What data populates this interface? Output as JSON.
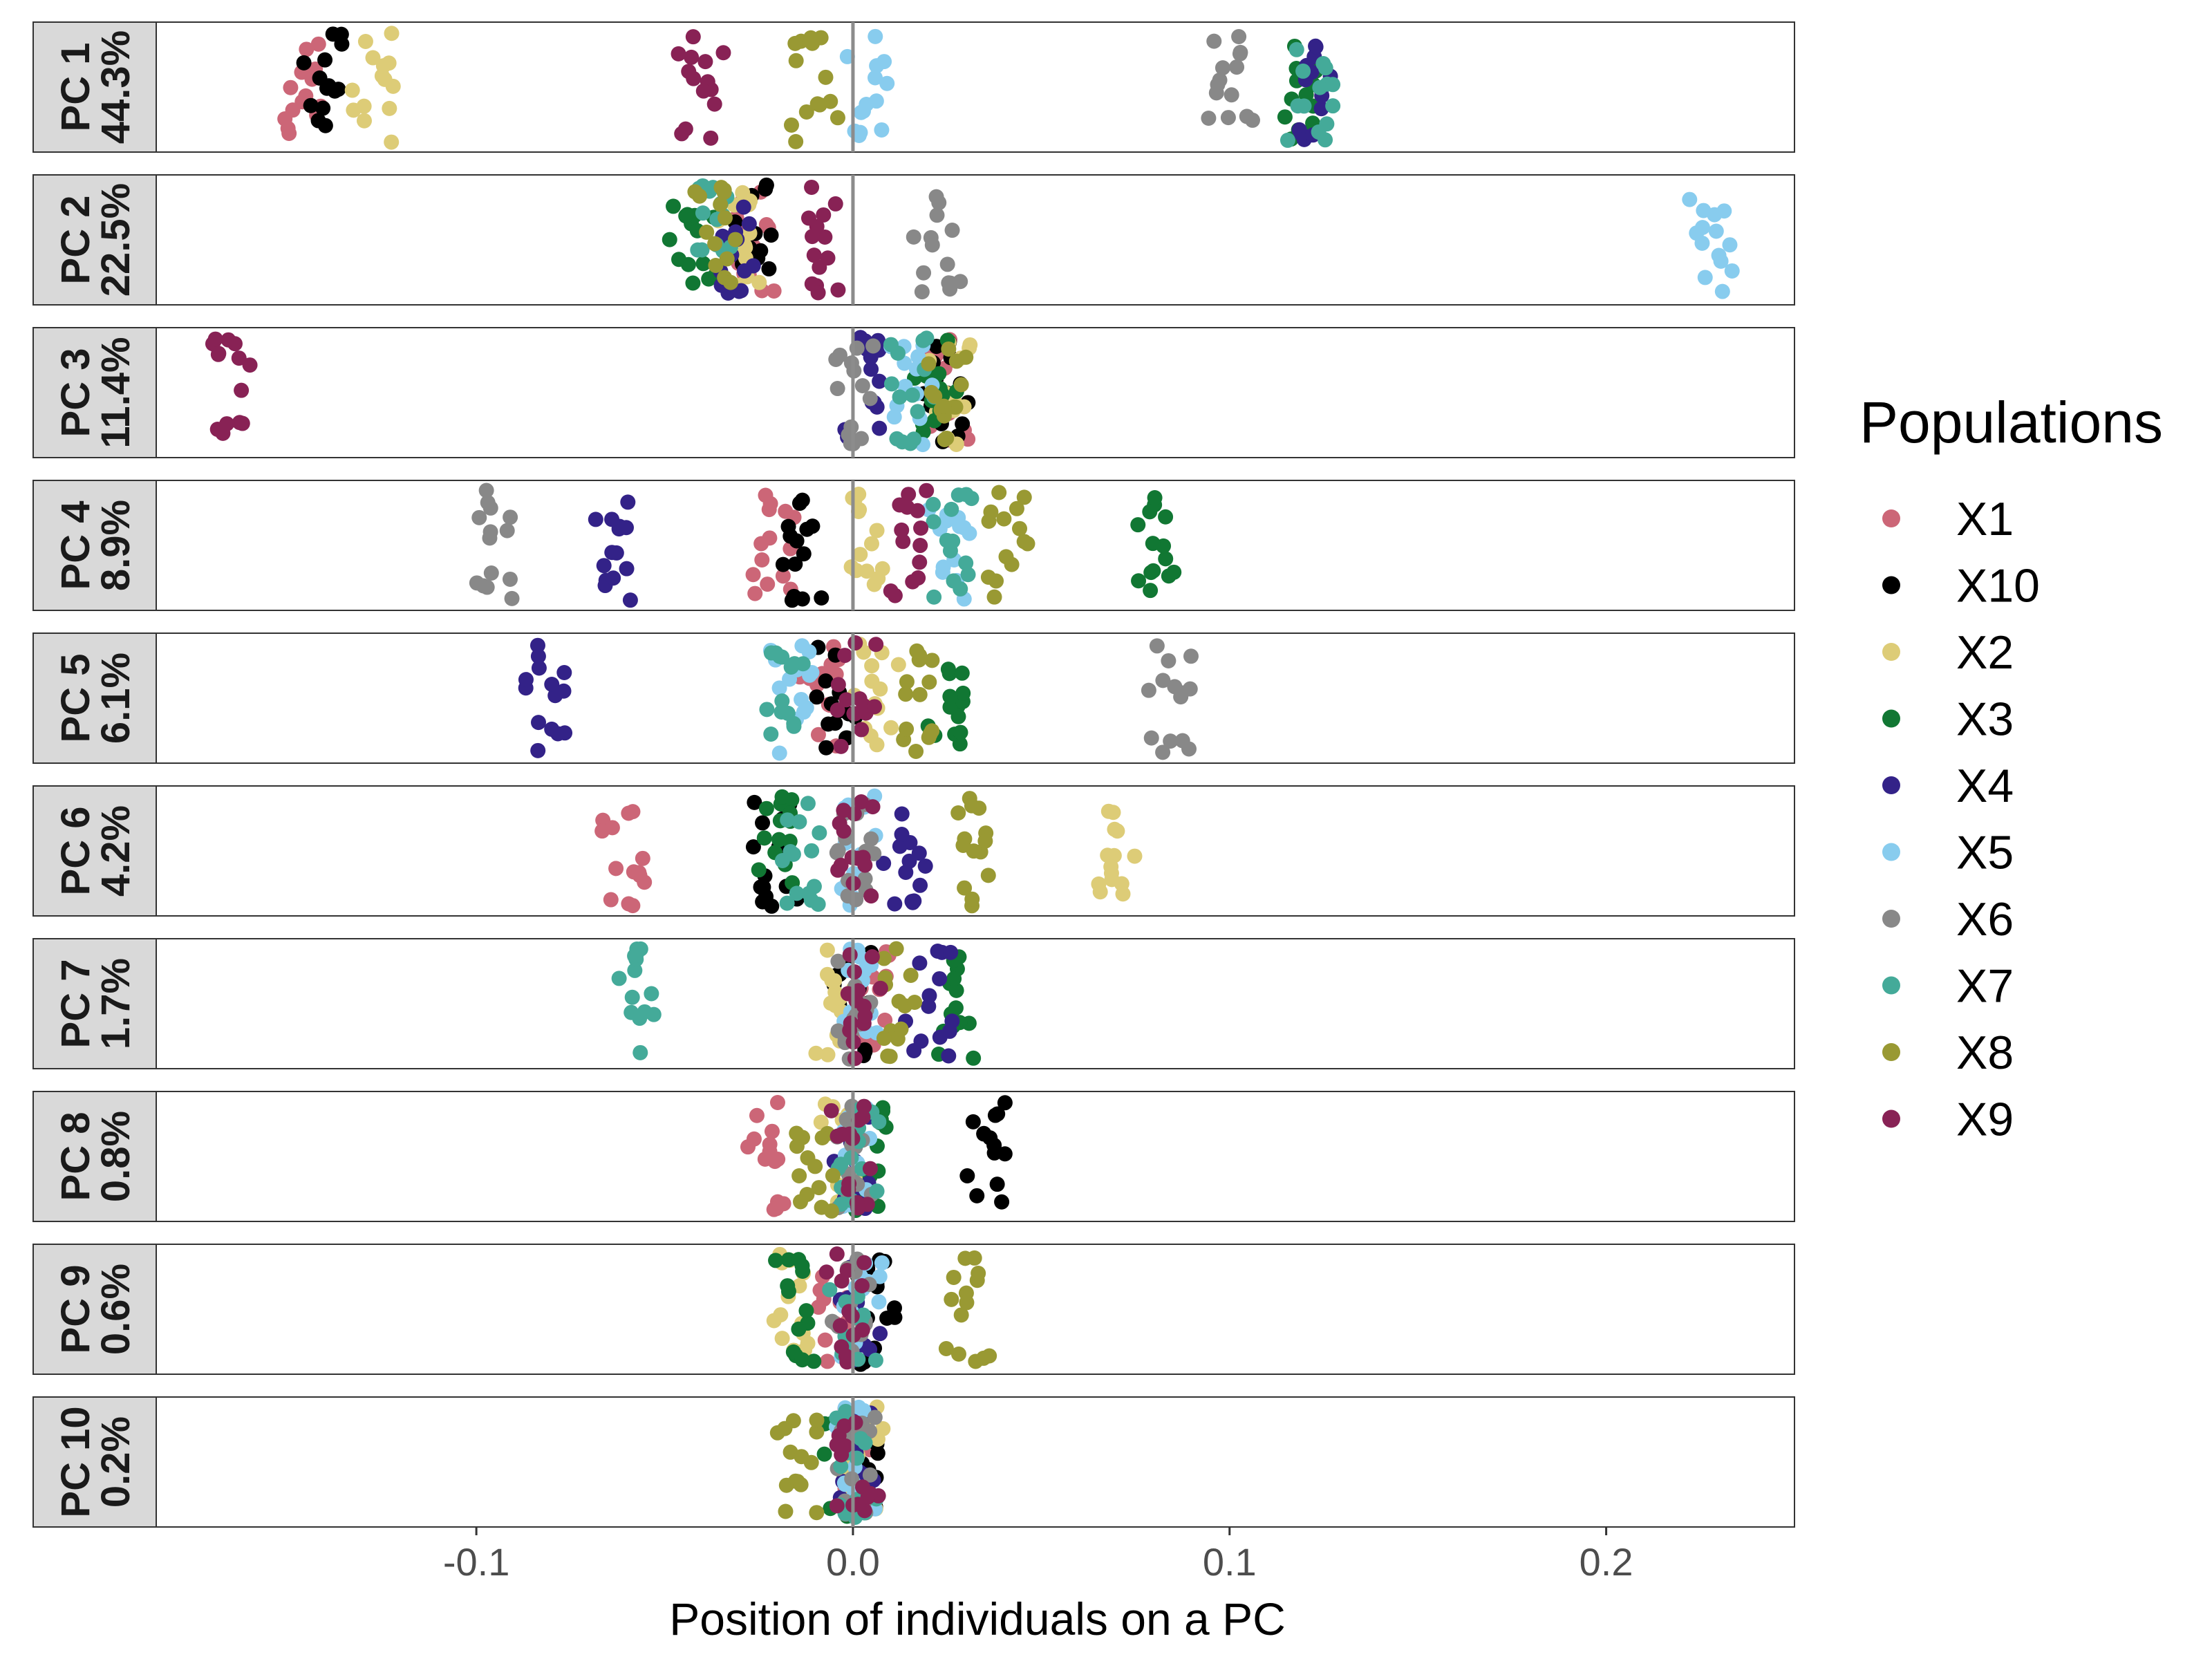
{
  "chart_data": {
    "type": "scatter",
    "title": "",
    "xlabel": "Position of individuals on a PC",
    "ylabel": "",
    "xlim": [
      -0.185,
      0.25
    ],
    "x_ticks": [
      -0.1,
      0.0,
      0.1,
      0.2
    ],
    "x_tick_labels": [
      "-0.1",
      "0.0",
      "0.1",
      "0.2"
    ],
    "reference_line_x": 0.0,
    "grid": false,
    "legend": {
      "title": "Populations",
      "placement": "right",
      "entries": [
        {
          "name": "X1",
          "color": "#CC6677"
        },
        {
          "name": "X10",
          "color": "#000000"
        },
        {
          "name": "X2",
          "color": "#DDCC77"
        },
        {
          "name": "X3",
          "color": "#117733"
        },
        {
          "name": "X4",
          "color": "#332288"
        },
        {
          "name": "X5",
          "color": "#88CCEE"
        },
        {
          "name": "X6",
          "color": "#888888"
        },
        {
          "name": "X7",
          "color": "#44AA99"
        },
        {
          "name": "X8",
          "color": "#999933"
        },
        {
          "name": "X9",
          "color": "#882255"
        }
      ]
    },
    "panels": [
      {
        "pc": "PC 1",
        "variance": "44.3%",
        "centers": {
          "X1": -0.147,
          "X10": -0.14,
          "X2": -0.127,
          "X3": 0.12,
          "X4": 0.122,
          "X5": 0.003,
          "X6": 0.1,
          "X7": 0.122,
          "X8": -0.01,
          "X9": -0.04
        }
      },
      {
        "pc": "PC 2",
        "variance": "22.5%",
        "centers": {
          "X1": -0.027,
          "X10": -0.026,
          "X2": -0.03,
          "X3": -0.043,
          "X4": -0.032,
          "X5": 0.228,
          "X6": 0.023,
          "X7": -0.037,
          "X8": -0.035,
          "X9": -0.007
        }
      },
      {
        "pc": "PC 3",
        "variance": "11.4%",
        "centers": {
          "X1": 0.025,
          "X10": 0.024,
          "X2": 0.026,
          "X3": 0.022,
          "X4": 0.003,
          "X5": 0.015,
          "X6": 0.0,
          "X7": 0.016,
          "X8": 0.025,
          "X9": -0.165
        }
      },
      {
        "pc": "PC 4",
        "variance": "8.9%",
        "centers": {
          "X1": -0.021,
          "X10": -0.014,
          "X2": 0.003,
          "X3": 0.08,
          "X4": -0.064,
          "X5": 0.027,
          "X6": -0.094,
          "X7": 0.026,
          "X8": 0.04,
          "X9": 0.016
        }
      },
      {
        "pc": "PC 5",
        "variance": "6.1%",
        "centers": {
          "X1": -0.009,
          "X10": -0.004,
          "X2": 0.006,
          "X3": 0.026,
          "X4": -0.082,
          "X5": -0.016,
          "X6": 0.085,
          "X7": -0.018,
          "X8": 0.017,
          "X9": 0.001
        }
      },
      {
        "pc": "PC 6",
        "variance": "4.2%",
        "centers": {
          "X1": -0.06,
          "X10": -0.021,
          "X2": 0.069,
          "X3": -0.02,
          "X4": 0.014,
          "X5": 0.001,
          "X6": 0.0,
          "X7": -0.014,
          "X8": 0.03,
          "X9": 0.0
        }
      },
      {
        "pc": "PC 7",
        "variance": "1.7%",
        "centers": {
          "X1": 0.004,
          "X10": -0.001,
          "X2": -0.006,
          "X3": 0.028,
          "X4": 0.02,
          "X5": 0.0,
          "X6": 0.0,
          "X7": -0.057,
          "X8": 0.012,
          "X9": 0.002
        }
      },
      {
        "pc": "PC 8",
        "variance": "0.8%",
        "centers": {
          "X1": -0.023,
          "X10": 0.036,
          "X2": -0.003,
          "X3": 0.005,
          "X4": 0.001,
          "X5": 0.002,
          "X6": 0.0,
          "X7": 0.001,
          "X8": -0.01,
          "X9": 0.0
        }
      },
      {
        "pc": "PC 9",
        "variance": "0.6%",
        "centers": {
          "X1": -0.004,
          "X10": 0.006,
          "X2": -0.018,
          "X3": -0.015,
          "X4": 0.001,
          "X5": 0.002,
          "X6": 0.0,
          "X7": 0.0,
          "X8": 0.031,
          "X9": -0.001
        }
      },
      {
        "pc": "PC 10",
        "variance": "0.2%",
        "centers": {
          "X1": 0.001,
          "X10": 0.004,
          "X2": 0.003,
          "X3": -0.001,
          "X4": 0.0,
          "X5": 0.001,
          "X6": 0.0,
          "X7": 0.001,
          "X8": -0.014,
          "X9": 0.0
        }
      }
    ]
  }
}
